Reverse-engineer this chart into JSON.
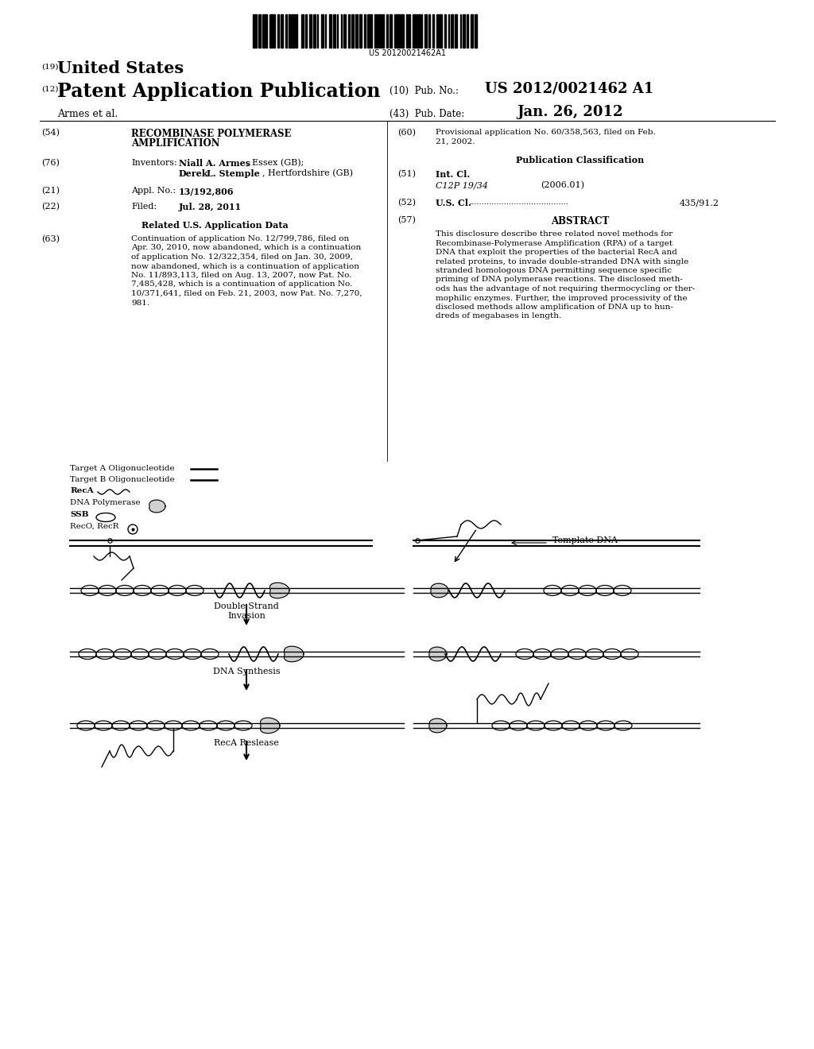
{
  "barcode_text": "US 20120021462A1",
  "patent_number": "US 2012/0021462 A1",
  "pub_date": "Jan. 26, 2012",
  "title19": "United States",
  "title12": "Patent Application Publication",
  "authors": "Armes et al.",
  "pub_no_label": "(10)  Pub. No.:",
  "pub_date_label": "(43)  Pub. Date:",
  "num19": "(19)",
  "num12": "(12)",
  "section54_label": "(54)",
  "section60_label": "(60)",
  "section60_text": "Provisional application No. 60/358,563, filed on Feb.\n21, 2002.",
  "section76_label": "(76)",
  "section76_title": "Inventors:",
  "section21_label": "(21)",
  "section21_title": "Appl. No.:",
  "section21_text": "13/192,806",
  "section22_label": "(22)",
  "section22_title": "Filed:",
  "section22_text": "Jul. 28, 2011",
  "related_title": "Related U.S. Application Data",
  "section63_label": "(63)",
  "section63_text": "Continuation of application No. 12/799,786, filed on\nApr. 30, 2010, now abandoned, which is a continuation\nof application No. 12/322,354, filed on Jan. 30, 2009,\nnow abandoned, which is a continuation of application\nNo. 11/893,113, filed on Aug. 13, 2007, now Pat. No.\n7,485,428, which is a continuation of application No.\n10/371,641, filed on Feb. 21, 2003, now Pat. No. 7,270,\n981.",
  "pub_class_title": "Publication Classification",
  "section51_label": "(51)",
  "section51_title": "Int. Cl.",
  "section51_class": "C12P 19/34",
  "section51_year": "(2006.01)",
  "section52_label": "(52)",
  "section52_title": "U.S. Cl. ",
  "section52_text": "435/91.2",
  "section57_label": "(57)",
  "section57_title": "ABSTRACT",
  "abstract_text": "This disclosure describe three related novel methods for\nRecombinase-Polymerase Amplification (RPA) of a target\nDNA that exploit the properties of the bacterial RecA and\nrelated proteins, to invade double-stranded DNA with single\nstranded homologous DNA permitting sequence specific\npriming of DNA polymerase reactions. The disclosed meth-\nods has the advantage of not requiring thermocycling or ther-\nmophilic enzymes. Further, the improved processivity of the\ndisclosed methods allow amplification of DNA up to hun-\ndreds of megabases in length.",
  "label_ds_invasion": "Double Strand\nInvasion",
  "label_dna_synth": "DNA Synthesis",
  "label_reca_release": "RecA Reslease",
  "label_template": "Template DNA",
  "bg_color": "#ffffff",
  "text_color": "#000000"
}
